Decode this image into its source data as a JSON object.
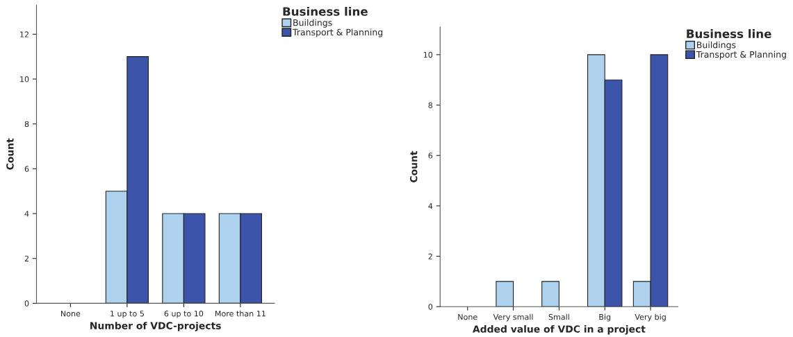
{
  "chart_data": [
    {
      "type": "bar",
      "xlabel": "Number of VDC-projects",
      "ylabel": "Count",
      "legend_title": "Business line",
      "legend": "top right",
      "categories": [
        "None",
        "1 up to 5",
        "6 up to 10",
        "More than 11"
      ],
      "series": [
        {
          "name": "Buildings",
          "color": "#aed1ee",
          "values": [
            0,
            5,
            4,
            4
          ]
        },
        {
          "name": "Transport & Planning",
          "color": "#3c55ab",
          "values": [
            0,
            11,
            4,
            4
          ]
        }
      ],
      "ylim": [
        0,
        13.3
      ],
      "yticks": [
        0,
        2,
        4,
        6,
        8,
        10,
        12
      ],
      "grid": false
    },
    {
      "type": "bar",
      "xlabel": "Added value of VDC in a project",
      "ylabel": "Count",
      "legend_title": "Business line",
      "legend": "top right",
      "categories": [
        "None",
        "Very small",
        "Small",
        "Big",
        "Very big"
      ],
      "series": [
        {
          "name": "Buildings",
          "color": "#aed1ee",
          "values": [
            0,
            1,
            1,
            10,
            1
          ]
        },
        {
          "name": "Transport & Planning",
          "color": "#3c55ab",
          "values": [
            0,
            0,
            0,
            9,
            10
          ]
        }
      ],
      "ylim": [
        0,
        11.1
      ],
      "yticks": [
        0,
        2,
        4,
        6,
        8,
        10
      ],
      "grid": false
    }
  ]
}
